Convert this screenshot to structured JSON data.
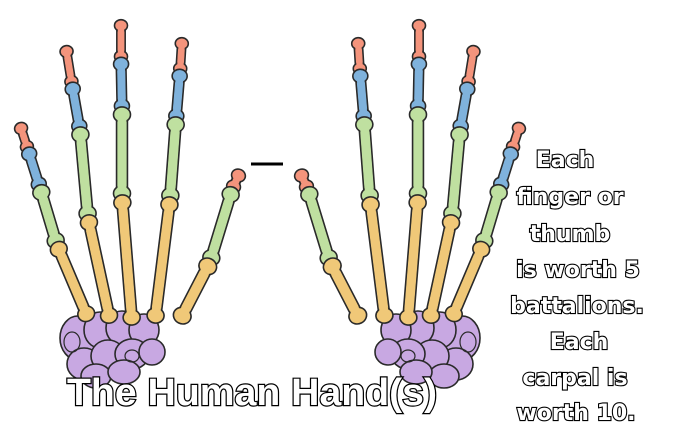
{
  "title": "The Human Hand(s)",
  "caption_lines": [
    "Each",
    "finger or",
    "thumb",
    "is worth 5",
    "battalions.",
    "Each",
    "carpal is",
    "worth 10."
  ],
  "colors": {
    "distal_phalanx": "#f4947c",
    "middle_phalanx": "#7fb2dc",
    "proximal_phalanx": "#bfe0a0",
    "metacarpal": "#f0c878",
    "carpal": "#c8a8e2",
    "outline": "#2a2a2a",
    "text_fill": "#ffffff",
    "text_stroke": "#000000"
  },
  "icons": [
    "left-hand-skeleton-icon",
    "right-hand-skeleton-icon",
    "thumb-connector-line"
  ]
}
